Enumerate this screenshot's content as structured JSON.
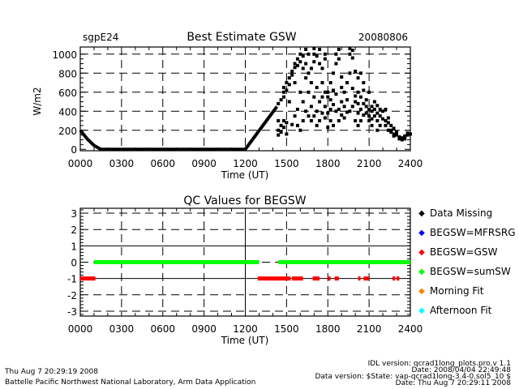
{
  "chart_data": [
    {
      "type": "scatter",
      "title": "Best Estimate GSW",
      "left_label": "sgpE24",
      "right_label": "20080806",
      "xlabel": "Time (UT)",
      "ylabel": "W/m2",
      "xlim": [
        0,
        24
      ],
      "ylim": [
        -15,
        1075
      ],
      "grid": true,
      "xticks": [
        "0000",
        "0300",
        "0600",
        "0900",
        "1200",
        "1500",
        "1800",
        "2100",
        "2400"
      ],
      "yticks": [
        0,
        200,
        400,
        600,
        800,
        1000
      ],
      "color": "#000000",
      "line_series": [
        [
          0,
          200
        ],
        [
          0.5,
          110
        ],
        [
          1.0,
          40
        ],
        [
          1.5,
          0
        ],
        [
          12.0,
          0
        ],
        [
          14.3,
          450
        ]
      ],
      "points": [
        [
          14.4,
          480
        ],
        [
          14.4,
          300
        ],
        [
          14.4,
          200
        ],
        [
          14.4,
          150
        ],
        [
          14.6,
          520
        ],
        [
          14.6,
          250
        ],
        [
          14.6,
          180
        ],
        [
          14.8,
          600
        ],
        [
          14.8,
          650
        ],
        [
          14.8,
          550
        ],
        [
          14.8,
          300
        ],
        [
          14.8,
          230
        ],
        [
          15.0,
          700
        ],
        [
          15.0,
          620
        ],
        [
          15.0,
          280
        ],
        [
          15.0,
          160
        ],
        [
          15.2,
          750
        ],
        [
          15.2,
          680
        ],
        [
          15.2,
          500
        ],
        [
          15.4,
          820
        ],
        [
          15.4,
          780
        ],
        [
          15.4,
          260
        ],
        [
          15.6,
          860
        ],
        [
          15.6,
          900
        ],
        [
          15.6,
          700
        ],
        [
          15.6,
          350
        ],
        [
          15.8,
          880
        ],
        [
          15.8,
          950
        ],
        [
          15.8,
          420
        ],
        [
          15.8,
          250
        ],
        [
          16.0,
          920
        ],
        [
          16.0,
          1000
        ],
        [
          16.0,
          600
        ],
        [
          16.0,
          200
        ],
        [
          16.2,
          850
        ],
        [
          16.2,
          980
        ],
        [
          16.2,
          500
        ],
        [
          16.2,
          300
        ],
        [
          16.4,
          1050
        ],
        [
          16.4,
          900
        ],
        [
          16.4,
          750
        ],
        [
          16.4,
          400
        ],
        [
          16.6,
          1000
        ],
        [
          16.6,
          800
        ],
        [
          16.6,
          350
        ],
        [
          16.6,
          600
        ],
        [
          16.8,
          850
        ],
        [
          16.8,
          700
        ],
        [
          16.8,
          450
        ],
        [
          16.8,
          300
        ],
        [
          17.0,
          1060
        ],
        [
          17.0,
          1000
        ],
        [
          17.0,
          920
        ],
        [
          17.0,
          550
        ],
        [
          17.0,
          350
        ],
        [
          17.2,
          980
        ],
        [
          17.2,
          650
        ],
        [
          17.2,
          400
        ],
        [
          17.2,
          250
        ],
        [
          17.4,
          900
        ],
        [
          17.4,
          1050
        ],
        [
          17.4,
          500
        ],
        [
          17.4,
          300
        ],
        [
          17.6,
          700
        ],
        [
          17.6,
          550
        ],
        [
          17.6,
          380
        ],
        [
          17.6,
          850
        ],
        [
          17.8,
          950
        ],
        [
          17.8,
          1000
        ],
        [
          17.8,
          600
        ],
        [
          17.8,
          450
        ],
        [
          17.8,
          330
        ],
        [
          18.0,
          600
        ],
        [
          18.0,
          550
        ],
        [
          18.0,
          380
        ],
        [
          18.0,
          230
        ],
        [
          18.2,
          700
        ],
        [
          18.2,
          520
        ],
        [
          18.2,
          420
        ],
        [
          18.2,
          300
        ],
        [
          18.4,
          800
        ],
        [
          18.4,
          620
        ],
        [
          18.4,
          470
        ],
        [
          18.4,
          250
        ],
        [
          18.6,
          1000
        ],
        [
          18.6,
          900
        ],
        [
          18.6,
          580
        ],
        [
          18.6,
          400
        ],
        [
          18.8,
          1050
        ],
        [
          18.8,
          950
        ],
        [
          18.8,
          420
        ],
        [
          18.8,
          300
        ],
        [
          19.0,
          760
        ],
        [
          19.0,
          650
        ],
        [
          19.0,
          500
        ],
        [
          19.0,
          360
        ],
        [
          19.2,
          600
        ],
        [
          19.2,
          450
        ],
        [
          19.2,
          330
        ],
        [
          19.4,
          700
        ],
        [
          19.4,
          520
        ],
        [
          19.4,
          390
        ],
        [
          19.6,
          1060
        ],
        [
          19.6,
          1000
        ],
        [
          19.6,
          800
        ],
        [
          19.6,
          400
        ],
        [
          19.8,
          1040
        ],
        [
          19.8,
          960
        ],
        [
          19.8,
          640
        ],
        [
          19.8,
          450
        ],
        [
          20.0,
          820
        ],
        [
          20.0,
          560
        ],
        [
          20.0,
          500
        ],
        [
          20.0,
          300
        ],
        [
          20.2,
          750
        ],
        [
          20.2,
          600
        ],
        [
          20.2,
          480
        ],
        [
          20.2,
          380
        ],
        [
          20.2,
          250
        ],
        [
          20.4,
          800
        ],
        [
          20.4,
          550
        ],
        [
          20.4,
          420
        ],
        [
          20.4,
          300
        ],
        [
          20.6,
          700
        ],
        [
          20.6,
          620
        ],
        [
          20.6,
          480
        ],
        [
          20.6,
          360
        ],
        [
          20.8,
          520
        ],
        [
          20.8,
          450
        ],
        [
          20.8,
          380
        ],
        [
          21.0,
          600
        ],
        [
          21.0,
          420
        ],
        [
          21.0,
          350
        ],
        [
          21.0,
          300
        ],
        [
          21.2,
          450
        ],
        [
          21.2,
          400
        ],
        [
          21.2,
          320
        ],
        [
          21.2,
          250
        ],
        [
          21.4,
          500
        ],
        [
          21.4,
          420
        ],
        [
          21.4,
          350
        ],
        [
          21.6,
          460
        ],
        [
          21.6,
          380
        ],
        [
          21.6,
          300
        ],
        [
          21.6,
          200
        ],
        [
          21.8,
          420
        ],
        [
          21.8,
          350
        ],
        [
          21.8,
          250
        ],
        [
          22.0,
          400
        ],
        [
          22.0,
          320
        ],
        [
          22.2,
          420
        ],
        [
          22.2,
          300
        ],
        [
          22.2,
          250
        ],
        [
          22.4,
          330
        ],
        [
          22.4,
          280
        ],
        [
          22.4,
          200
        ],
        [
          22.6,
          250
        ],
        [
          22.6,
          200
        ],
        [
          22.6,
          180
        ],
        [
          22.8,
          220
        ],
        [
          22.8,
          160
        ],
        [
          22.8,
          140
        ],
        [
          23.0,
          180
        ],
        [
          23.0,
          150
        ],
        [
          23.2,
          130
        ],
        [
          23.2,
          110
        ],
        [
          23.4,
          120
        ],
        [
          23.4,
          100
        ],
        [
          23.6,
          110
        ],
        [
          23.6,
          140
        ],
        [
          23.8,
          150
        ],
        [
          23.8,
          170
        ],
        [
          24.0,
          160
        ]
      ]
    },
    {
      "type": "scatter",
      "title": "QC Values for BEGSW",
      "xlabel": "Time (UT)",
      "ylabel": "",
      "xlim": [
        0,
        24
      ],
      "ylim": [
        -3.3,
        3.3
      ],
      "grid": true,
      "xticks": [
        "0000",
        "0300",
        "0600",
        "0900",
        "1200",
        "1500",
        "1800",
        "2100",
        "2400"
      ],
      "yticks": [
        3,
        2,
        1,
        0,
        -1,
        -2,
        -3
      ],
      "legend_position": "right",
      "legend": [
        {
          "label": "Data Missing",
          "color": "#000000"
        },
        {
          "label": "BEGSW=MFRSRG",
          "color": "#0000ff"
        },
        {
          "label": "BEGSW=GSW",
          "color": "#ff0000"
        },
        {
          "label": "BEGSW=sumSW",
          "color": "#00ff00"
        },
        {
          "label": "Morning Fit",
          "color": "#ff8000"
        },
        {
          "label": "Afternoon Fit",
          "color": "#00ffff"
        }
      ],
      "series": [
        {
          "value": 0,
          "color": "#00ff00",
          "segments": [
            [
              1.0,
              13.0
            ],
            [
              14.4,
              24.0
            ]
          ]
        },
        {
          "value": -1,
          "color": "#ff0000",
          "segments": [
            [
              0,
              1.1
            ],
            [
              12.9,
              15.3
            ],
            [
              15.4,
              16.2
            ],
            [
              16.9,
              17.4
            ],
            [
              18.0,
              18.2
            ],
            [
              18.5,
              18.8
            ],
            [
              20.2,
              20.3
            ],
            [
              20.6,
              21.0
            ],
            [
              22.7,
              22.9
            ],
            [
              23.0,
              23.2
            ]
          ]
        }
      ]
    }
  ],
  "footer": {
    "left_line1": "Thu Aug  7 20:29:19 2008",
    "left_line2": "Battelle Pacific Northwest National Laboratory, Arm Data Application",
    "right_line1": "IDL version: qcrad1long_plots.pro,v 1.1",
    "right_line2": "Date: 2008/04/04 22:49:48",
    "right_line3": "Data version: $State: vap-qcrad1long-3.4-0.sol5_10 $",
    "right_line4": "Date: Thu Aug  7 20:29:11 2008"
  }
}
